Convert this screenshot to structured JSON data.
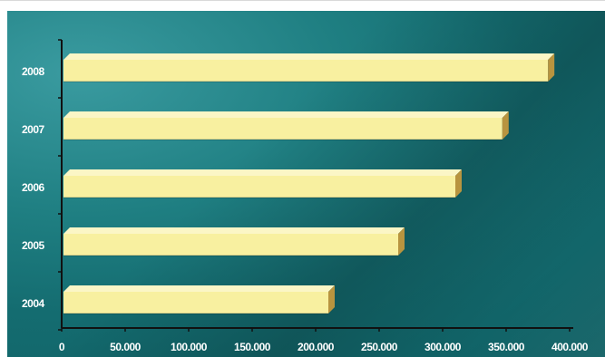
{
  "chart_data": {
    "type": "bar",
    "orientation": "horizontal",
    "categories": [
      "2008",
      "2007",
      "2006",
      "2005",
      "2004"
    ],
    "values": [
      383000,
      347000,
      310000,
      265000,
      210000
    ],
    "xlim": [
      0,
      400000
    ],
    "xticks": [
      "0",
      "50.000",
      "100.000",
      "150.000",
      "200.000",
      "250.000",
      "300.000",
      "350.000",
      "400.000"
    ],
    "grid": false,
    "legend": "none",
    "colors": {
      "bar_face": "#f8f0a0",
      "bar_top": "#fbf6c6",
      "bar_side": "#b8943f",
      "axis": "#111111",
      "text": "#ffffff"
    }
  }
}
